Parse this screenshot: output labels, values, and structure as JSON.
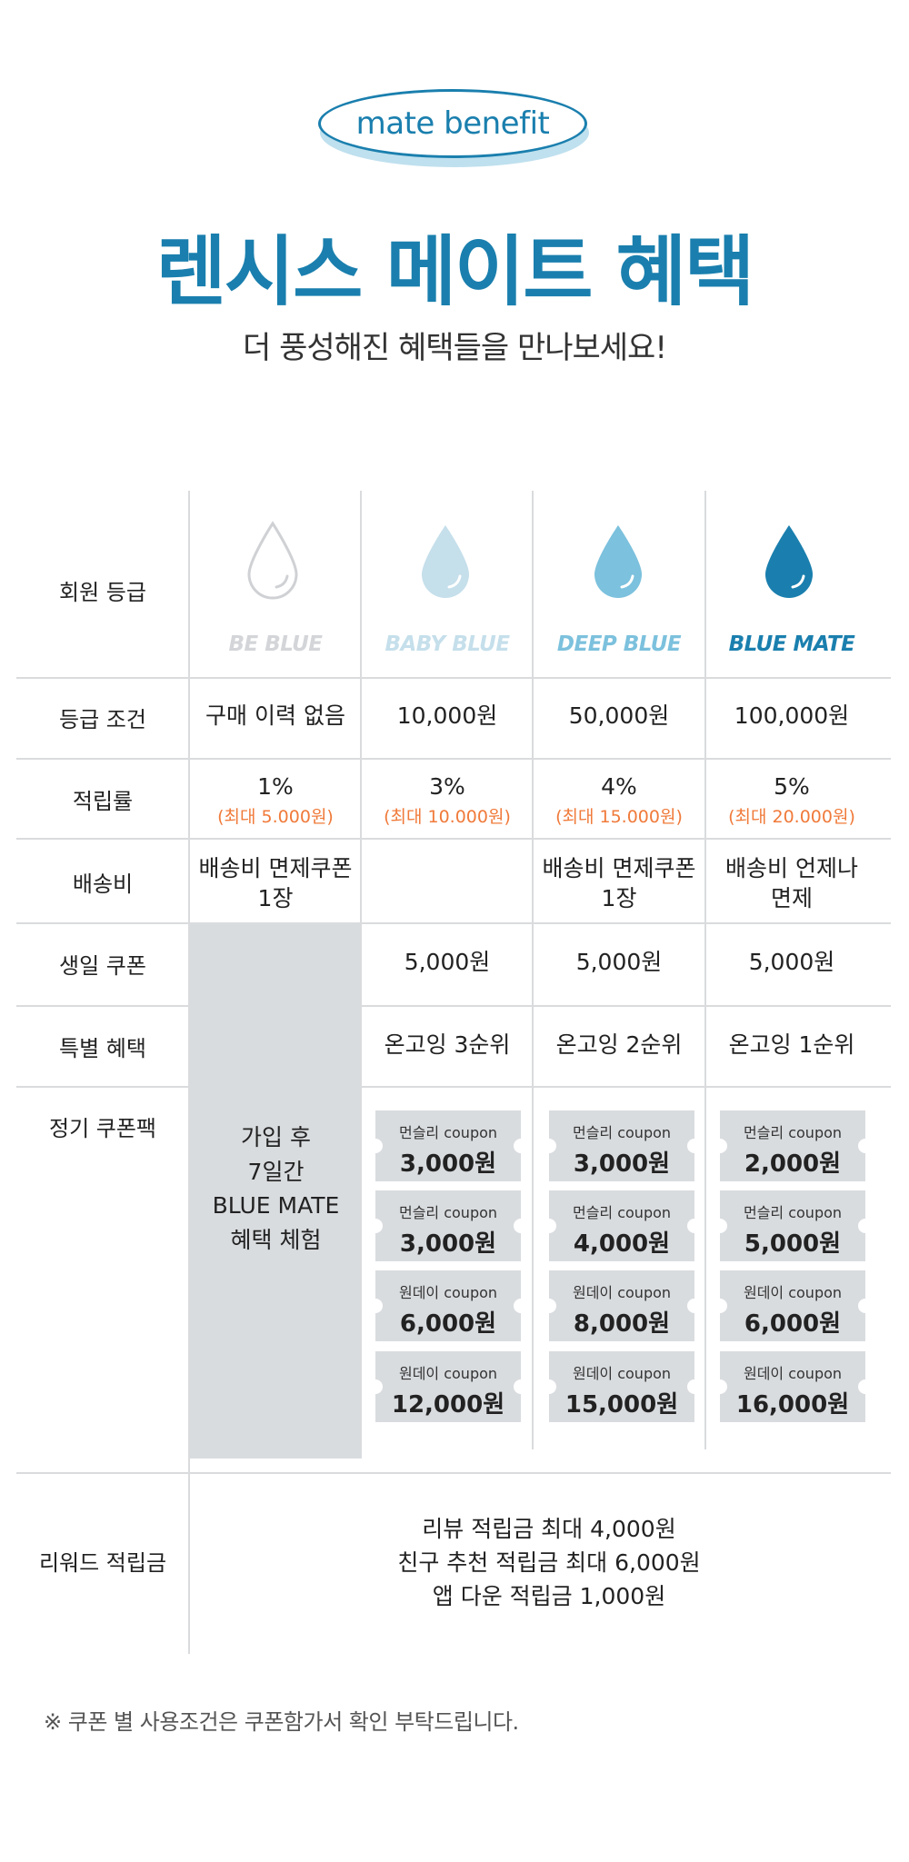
{
  "header": {
    "badge": "mate benefit",
    "title": "렌시스 메이트 혜택",
    "subtitle": "더 풍성해진 혜택들을 만나보세요!"
  },
  "colors": {
    "accent": "#1a7fae",
    "orange": "#f07a3a",
    "be_blue": "#d3d5d8",
    "baby_blue": "#c5dfeb",
    "deep_blue": "#7cc1dd",
    "blue_mate": "#1a7fae"
  },
  "rows": {
    "grade": "회원 등급",
    "condition": "등급 조건",
    "rate": "적립률",
    "shipping": "배송비",
    "birthday": "생일 쿠폰",
    "special": "특별 혜택",
    "coupon_pack": "정기 쿠폰팩",
    "reward": "리워드 적립금"
  },
  "grades": [
    {
      "name": "BE BLUE",
      "icon": "water-drop-outline-icon",
      "condition": "구매 이력 없음",
      "rate": "1%",
      "rate_max": "(최대 5.000원)",
      "shipping": "배송비 면제쿠폰\n1장"
    },
    {
      "name": "BABY BLUE",
      "icon": "water-drop-icon",
      "condition": "10,000원",
      "rate": "3%",
      "rate_max": "(최대 10.000원)",
      "shipping": "",
      "birthday": "5,000원",
      "special": "온고잉 3순위",
      "coupons": [
        {
          "type": "먼슬리 coupon",
          "amount": "3,000원"
        },
        {
          "type": "먼슬리 coupon",
          "amount": "3,000원"
        },
        {
          "type": "원데이 coupon",
          "amount": "6,000원"
        },
        {
          "type": "원데이 coupon",
          "amount": "12,000원"
        }
      ]
    },
    {
      "name": "DEEP BLUE",
      "icon": "water-drop-icon",
      "condition": "50,000원",
      "rate": "4%",
      "rate_max": "(최대 15.000원)",
      "shipping": "배송비 면제쿠폰\n1장",
      "birthday": "5,000원",
      "special": "온고잉 2순위",
      "coupons": [
        {
          "type": "먼슬리 coupon",
          "amount": "3,000원"
        },
        {
          "type": "먼슬리 coupon",
          "amount": "4,000원"
        },
        {
          "type": "원데이 coupon",
          "amount": "8,000원"
        },
        {
          "type": "원데이 coupon",
          "amount": "15,000원"
        }
      ]
    },
    {
      "name": "BLUE MATE",
      "icon": "water-drop-icon",
      "condition": "100,000원",
      "rate": "5%",
      "rate_max": "(최대 20.000원)",
      "shipping": "배송비 언제나\n면제",
      "birthday": "5,000원",
      "special": "온고잉 1순위",
      "coupons": [
        {
          "type": "먼슬리 coupon",
          "amount": "2,000원"
        },
        {
          "type": "먼슬리 coupon",
          "amount": "5,000원"
        },
        {
          "type": "원데이 coupon",
          "amount": "6,000원"
        },
        {
          "type": "원데이 coupon",
          "amount": "16,000원"
        }
      ]
    }
  ],
  "trial": [
    "가입 후",
    "7일간",
    "BLUE MATE",
    "혜택 체험"
  ],
  "reward_lines": [
    "리뷰 적립금 최대  4,000원",
    "친구 추천 적립금 최대 6,000원",
    "앱 다운 적립금 1,000원"
  ],
  "footnote": "※ 쿠폰 별 사용조건은 쿠폰함가서 확인 부탁드립니다."
}
